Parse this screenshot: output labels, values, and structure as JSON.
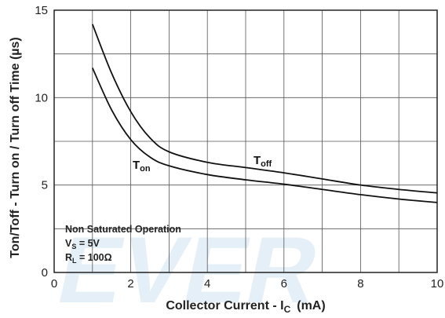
{
  "chart_data": {
    "type": "line",
    "xlabel": "Collector Current - I",
    "xlabel_sub": "C",
    "xlabel_unit": "(mA)",
    "ylabel": "Ton/Toff - Turn on / Turn off Time  (µs)",
    "xlim": [
      0,
      10
    ],
    "ylim": [
      0,
      15
    ],
    "x_ticks": [
      0,
      2,
      4,
      6,
      8,
      10
    ],
    "x_tick_labels": [
      "0",
      "2",
      "4",
      "6",
      "8",
      "10"
    ],
    "y_ticks": [
      0,
      5,
      10,
      15
    ],
    "y_tick_labels": [
      "0",
      "5",
      "10",
      "15"
    ],
    "grid": true,
    "series": [
      {
        "name": "T",
        "name_sub": "off",
        "x": [
          1.0,
          1.5,
          2.0,
          2.5,
          3.0,
          4.0,
          5.0,
          6.0,
          7.0,
          8.0,
          9.0,
          10.0
        ],
        "y": [
          14.2,
          11.4,
          9.2,
          7.7,
          6.9,
          6.3,
          6.0,
          5.7,
          5.35,
          5.0,
          4.75,
          4.55
        ],
        "color": "#111111"
      },
      {
        "name": "T",
        "name_sub": "on",
        "x": [
          1.0,
          1.5,
          2.0,
          2.5,
          3.0,
          4.0,
          5.0,
          6.0,
          7.0,
          8.0,
          9.0,
          10.0
        ],
        "y": [
          11.7,
          9.3,
          7.6,
          6.6,
          6.1,
          5.6,
          5.3,
          5.05,
          4.75,
          4.45,
          4.2,
          4.0
        ],
        "color": "#111111"
      }
    ],
    "annotations": {
      "line1": "Non Saturated Operation",
      "line2_main": "V",
      "line2_sub": "S",
      "line2_rest": " = 5V",
      "line3_main": "R",
      "line3_sub": "L",
      "line3_rest": " = 100Ω"
    },
    "watermark": "EVER"
  }
}
